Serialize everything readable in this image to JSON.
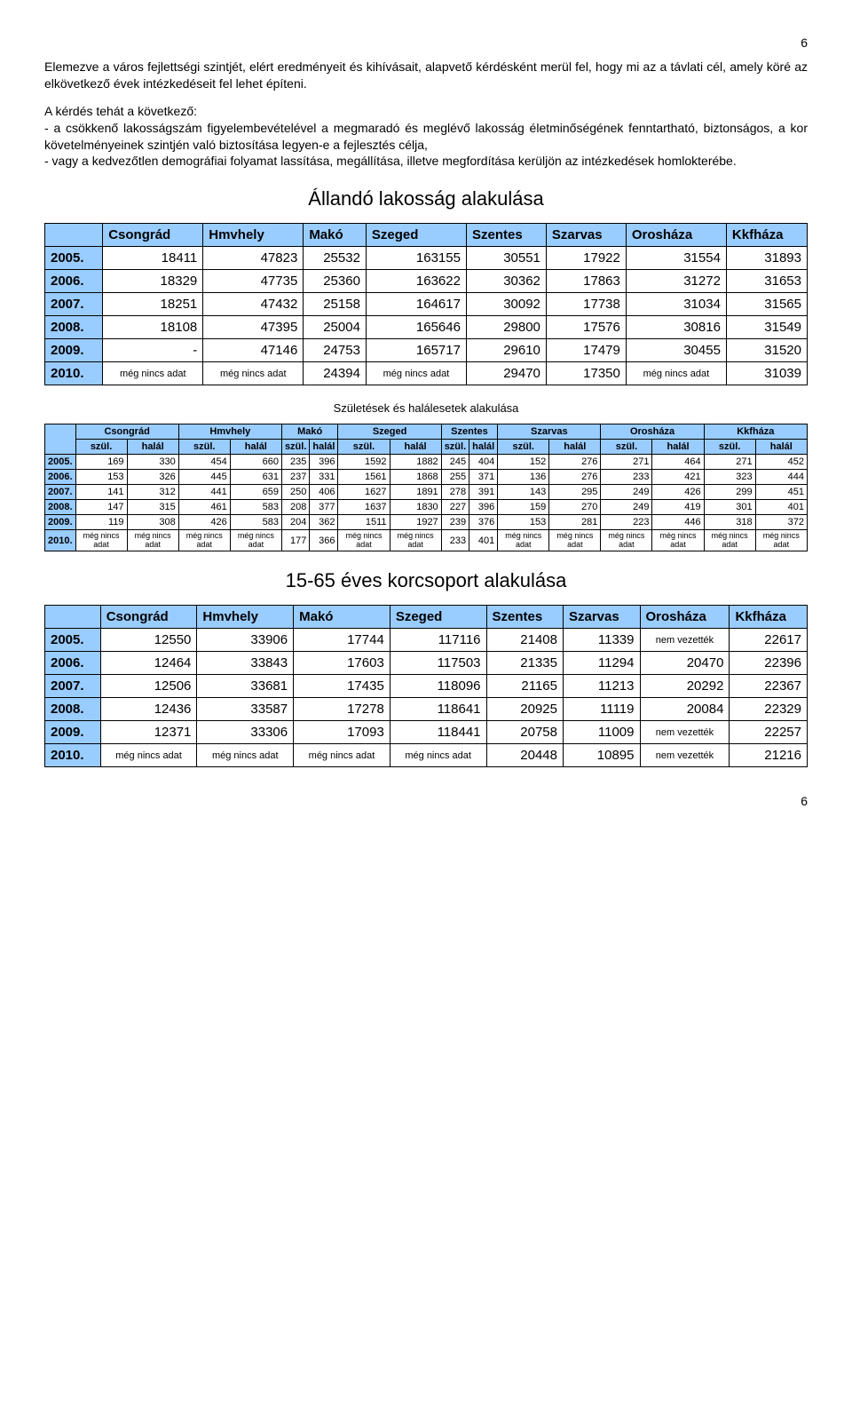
{
  "page_number_top": "6",
  "page_number_bottom": "6",
  "para1": "Elemezve a város fejlettségi szintjét, elért eredményeit és kihívásait, alapvető kérdésként merül fel, hogy mi az a távlati cél, amely köré az elkövetkező évek intézkedéseit fel lehet építeni.",
  "para2_lead": "A kérdés tehát a következő:",
  "para2_bullet1": "- a csökkenő lakosságszám figyelembevételével a megmaradó és meglévő lakosság életminőségének fenntartható, biztonságos, a kor követelményeinek szintjén való biztosítása legyen-e a fejlesztés célja,",
  "para2_bullet2": "- vagy a kedvezőtlen demográfiai folyamat lassítása, megállítása, illetve megfordítása kerüljön az intézkedések homlokterébe.",
  "section1_title": "Állandó lakosság alakulása",
  "section2_title": "Születések és halálesetek alakulása",
  "section3_title": "15-65 éves korcsoport alakulása",
  "cols_cities": [
    "Csongrád",
    "Hmvhely",
    "Makó",
    "Szeged",
    "Szentes",
    "Szarvas",
    "Orosháza",
    "Kkfháza"
  ],
  "t1": {
    "years": [
      "2005.",
      "2006.",
      "2007.",
      "2008.",
      "2009.",
      "2010."
    ],
    "rows": [
      [
        "18411",
        "47823",
        "25532",
        "163155",
        "30551",
        "17922",
        "31554",
        "31893"
      ],
      [
        "18329",
        "47735",
        "25360",
        "163622",
        "30362",
        "17863",
        "31272",
        "31653"
      ],
      [
        "18251",
        "47432",
        "25158",
        "164617",
        "30092",
        "17738",
        "31034",
        "31565"
      ],
      [
        "18108",
        "47395",
        "25004",
        "165646",
        "29800",
        "17576",
        "30816",
        "31549"
      ],
      [
        "-",
        "47146",
        "24753",
        "165717",
        "29610",
        "17479",
        "30455",
        "31520"
      ],
      [
        "még nincs adat",
        "még nincs adat",
        "24394",
        "még nincs adat",
        "29470",
        "17350",
        "még nincs adat",
        "31039"
      ]
    ],
    "row_notes": [
      [
        false,
        false,
        false,
        false,
        false,
        false,
        false,
        false
      ],
      [
        false,
        false,
        false,
        false,
        false,
        false,
        false,
        false
      ],
      [
        false,
        false,
        false,
        false,
        false,
        false,
        false,
        false
      ],
      [
        false,
        false,
        false,
        false,
        false,
        false,
        false,
        false
      ],
      [
        false,
        false,
        false,
        false,
        false,
        false,
        false,
        false
      ],
      [
        true,
        true,
        false,
        true,
        false,
        false,
        true,
        false
      ]
    ]
  },
  "t2": {
    "subcols": [
      "szül.",
      "halál"
    ],
    "years": [
      "2005.",
      "2006.",
      "2007.",
      "2008.",
      "2009.",
      "2010."
    ],
    "rows": [
      [
        "169",
        "330",
        "454",
        "660",
        "235",
        "396",
        "1592",
        "1882",
        "245",
        "404",
        "152",
        "276",
        "271",
        "464",
        "271",
        "452"
      ],
      [
        "153",
        "326",
        "445",
        "631",
        "237",
        "331",
        "1561",
        "1868",
        "255",
        "371",
        "136",
        "276",
        "233",
        "421",
        "323",
        "444"
      ],
      [
        "141",
        "312",
        "441",
        "659",
        "250",
        "406",
        "1627",
        "1891",
        "278",
        "391",
        "143",
        "295",
        "249",
        "426",
        "299",
        "451"
      ],
      [
        "147",
        "315",
        "461",
        "583",
        "208",
        "377",
        "1637",
        "1830",
        "227",
        "396",
        "159",
        "270",
        "249",
        "419",
        "301",
        "401"
      ],
      [
        "119",
        "308",
        "426",
        "583",
        "204",
        "362",
        "1511",
        "1927",
        "239",
        "376",
        "153",
        "281",
        "223",
        "446",
        "318",
        "372"
      ],
      [
        "még nincs adat",
        "még nincs adat",
        "még nincs adat",
        "még nincs adat",
        "177",
        "366",
        "még nincs adat",
        "még nincs adat",
        "233",
        "401",
        "még nincs adat",
        "még nincs adat",
        "még nincs adat",
        "még nincs adat",
        "még nincs adat",
        "még nincs adat"
      ]
    ],
    "row_notes": [
      [
        false,
        false,
        false,
        false,
        false,
        false,
        false,
        false,
        false,
        false,
        false,
        false,
        false,
        false,
        false,
        false
      ],
      [
        false,
        false,
        false,
        false,
        false,
        false,
        false,
        false,
        false,
        false,
        false,
        false,
        false,
        false,
        false,
        false
      ],
      [
        false,
        false,
        false,
        false,
        false,
        false,
        false,
        false,
        false,
        false,
        false,
        false,
        false,
        false,
        false,
        false
      ],
      [
        false,
        false,
        false,
        false,
        false,
        false,
        false,
        false,
        false,
        false,
        false,
        false,
        false,
        false,
        false,
        false
      ],
      [
        false,
        false,
        false,
        false,
        false,
        false,
        false,
        false,
        false,
        false,
        false,
        false,
        false,
        false,
        false,
        false
      ],
      [
        true,
        true,
        true,
        true,
        false,
        false,
        true,
        true,
        false,
        false,
        true,
        true,
        true,
        true,
        true,
        true
      ]
    ]
  },
  "t3": {
    "years": [
      "2005.",
      "2006.",
      "2007.",
      "2008.",
      "2009.",
      "2010."
    ],
    "rows": [
      [
        "12550",
        "33906",
        "17744",
        "117116",
        "21408",
        "11339",
        "nem vezették",
        "22617"
      ],
      [
        "12464",
        "33843",
        "17603",
        "117503",
        "21335",
        "11294",
        "20470",
        "22396"
      ],
      [
        "12506",
        "33681",
        "17435",
        "118096",
        "21165",
        "11213",
        "20292",
        "22367"
      ],
      [
        "12436",
        "33587",
        "17278",
        "118641",
        "20925",
        "11119",
        "20084",
        "22329"
      ],
      [
        "12371",
        "33306",
        "17093",
        "118441",
        "20758",
        "11009",
        "nem vezették",
        "22257"
      ],
      [
        "még nincs adat",
        "még nincs adat",
        "még nincs adat",
        "még nincs adat",
        "20448",
        "10895",
        "nem vezették",
        "21216"
      ]
    ],
    "row_notes": [
      [
        false,
        false,
        false,
        false,
        false,
        false,
        true,
        false
      ],
      [
        false,
        false,
        false,
        false,
        false,
        false,
        false,
        false
      ],
      [
        false,
        false,
        false,
        false,
        false,
        false,
        false,
        false
      ],
      [
        false,
        false,
        false,
        false,
        false,
        false,
        false,
        false
      ],
      [
        false,
        false,
        false,
        false,
        false,
        false,
        true,
        false
      ],
      [
        true,
        true,
        true,
        true,
        false,
        false,
        true,
        false
      ]
    ]
  },
  "colors": {
    "header_bg": "#99ccff",
    "border": "#000000",
    "text": "#000000",
    "background": "#ffffff"
  }
}
